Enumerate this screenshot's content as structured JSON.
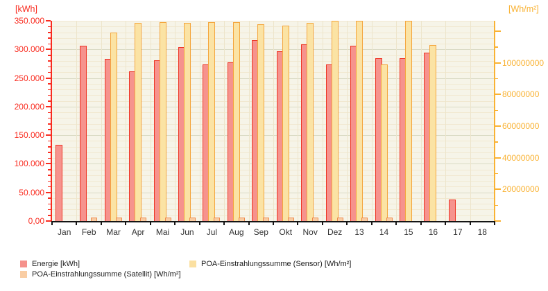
{
  "chart_data": {
    "type": "bar",
    "title": "",
    "categories": [
      "Jan",
      "Feb",
      "Mar",
      "Apr",
      "Mai",
      "Jun",
      "Jul",
      "Aug",
      "Sep",
      "Okt",
      "Nov",
      "Dez",
      "13",
      "14",
      "15",
      "16",
      "17",
      "18"
    ],
    "series": [
      {
        "key": "energie",
        "name": "Energie [kWh]",
        "axis": "left",
        "unit": "kWh",
        "fill": "#F6938D",
        "border": "#EE3424",
        "values": [
          133000,
          306000,
          283000,
          262000,
          281000,
          304000,
          274000,
          277000,
          316000,
          297000,
          309000,
          274000,
          306000,
          285000,
          285000,
          294000,
          37000,
          null
        ]
      },
      {
        "key": "satellit",
        "name": "POA-Einstrahlungssumme (Satellit) [Wh/m²]",
        "axis": "right",
        "unit": "Wh/m²",
        "fill": "#F9CDA4",
        "border": "#EE8A4E",
        "values": [
          null,
          2000000,
          2000000,
          2000000,
          2000000,
          2000000,
          2000000,
          2000000,
          2000000,
          2000000,
          2000000,
          2000000,
          2000000,
          2000000,
          null,
          null,
          null,
          null
        ]
      },
      {
        "key": "sensor",
        "name": "POA-Einstrahlungssumme (Sensor) [Wh/m²]",
        "axis": "right",
        "unit": "Wh/m²",
        "fill": "#FBE3A4",
        "border": "#F4A53C",
        "values": [
          null,
          null,
          119000000,
          125300000,
          125800000,
          125300000,
          125800000,
          125800000,
          124500000,
          123600000,
          125300000,
          127000000,
          127000000,
          99000000,
          127000000,
          111400000,
          null,
          null
        ]
      }
    ],
    "axes": {
      "left": {
        "title": "[kWh]",
        "color": "#F92C20",
        "min": 0,
        "max": 350000,
        "major_step": 50000,
        "minor_step": 10000,
        "tick_labels": [
          {
            "value": 350000,
            "label": "350.000"
          },
          {
            "value": 300000,
            "label": "300.000"
          },
          {
            "value": 250000,
            "label": "250.000"
          },
          {
            "value": 200000,
            "label": "200.000"
          },
          {
            "value": 150000,
            "label": "150.000"
          },
          {
            "value": 100000,
            "label": "100.000"
          },
          {
            "value": 50000,
            "label": "50.000"
          },
          {
            "value": 0,
            "label": "0,00"
          }
        ]
      },
      "right": {
        "title": "[Wh/m²]",
        "color": "#F9B233",
        "min": 0,
        "max": 126500000,
        "major_step": 20000000,
        "minor_step": 10000000,
        "tick_labels": [
          {
            "value": 100000000,
            "label": "100000000"
          },
          {
            "value": 80000000,
            "label": "80000000"
          },
          {
            "value": 60000000,
            "label": "60000000"
          },
          {
            "value": 40000000,
            "label": "40000000"
          },
          {
            "value": 20000000,
            "label": "20000000"
          }
        ]
      },
      "x": {
        "labels": [
          "Jan",
          "Feb",
          "Mar",
          "Apr",
          "Mai",
          "Jun",
          "Jul",
          "Aug",
          "Sep",
          "Okt",
          "Nov",
          "Dez",
          "13",
          "14",
          "15",
          "16",
          "17",
          "18"
        ]
      }
    },
    "legend": {
      "position": "bottom",
      "items": [
        {
          "key": "energie",
          "label": "Energie [kWh]",
          "color": "#F5918B"
        },
        {
          "key": "satellit",
          "label": "POA-Einstrahlungssumme (Satellit) [Wh/m²]",
          "color": "#F9CDA4"
        },
        {
          "key": "sensor",
          "label": "POA-Einstrahlungssumme (Sensor) [Wh/m²]",
          "color": "#FBE0A1"
        }
      ]
    },
    "grid": true,
    "notes": "Sensor bars for Dez, 13 and 15 are clipped at the top of the right axis"
  }
}
